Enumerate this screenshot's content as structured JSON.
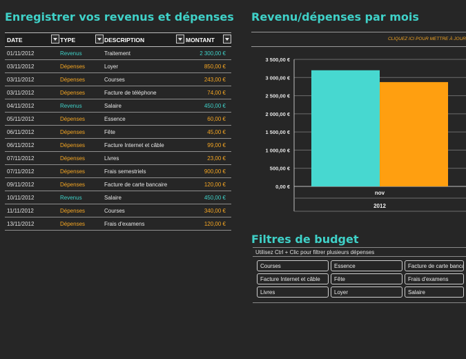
{
  "left_title": "Enregistrer vos revenus et dépenses",
  "chart_title": "Revenu/dépenses par mois",
  "filters_title": "Filtres de budget",
  "table": {
    "headers": [
      "DATE",
      "TYPE",
      "DESCRIPTION",
      "MONTANT"
    ],
    "rows": [
      {
        "date": "01/11/2012",
        "type": "Revenus",
        "desc": "Traitement",
        "amount": "2 300,00 €"
      },
      {
        "date": "03/11/2012",
        "type": "Dépenses",
        "desc": "Loyer",
        "amount": "850,00 €"
      },
      {
        "date": "03/11/2012",
        "type": "Dépenses",
        "desc": "Courses",
        "amount": "243,00 €"
      },
      {
        "date": "03/11/2012",
        "type": "Dépenses",
        "desc": "Facture de téléphone",
        "amount": "74,00 €"
      },
      {
        "date": "04/11/2012",
        "type": "Revenus",
        "desc": "Salaire",
        "amount": "450,00 €"
      },
      {
        "date": "05/11/2012",
        "type": "Dépenses",
        "desc": "Essence",
        "amount": "60,00 €"
      },
      {
        "date": "06/11/2012",
        "type": "Dépenses",
        "desc": "Fête",
        "amount": "45,00 €"
      },
      {
        "date": "06/11/2012",
        "type": "Dépenses",
        "desc": "Facture Internet et câble",
        "amount": "99,00 €"
      },
      {
        "date": "07/11/2012",
        "type": "Dépenses",
        "desc": "Livres",
        "amount": "23,00 €"
      },
      {
        "date": "07/11/2012",
        "type": "Dépenses",
        "desc": "Frais semestriels",
        "amount": "900,00 €"
      },
      {
        "date": "09/11/2012",
        "type": "Dépenses",
        "desc": "Facture de carte bancaire",
        "amount": "120,00 €"
      },
      {
        "date": "10/11/2012",
        "type": "Revenus",
        "desc": "Salaire",
        "amount": "450,00 €"
      },
      {
        "date": "11/11/2012",
        "type": "Dépenses",
        "desc": "Courses",
        "amount": "340,00 €"
      },
      {
        "date": "13/11/2012",
        "type": "Dépenses",
        "desc": "Frais d'examens",
        "amount": "120,00 €"
      }
    ]
  },
  "refresh_text": "CLIQUEZ ICI POUR METTRE À JOUR",
  "chart_data": {
    "type": "bar",
    "categories": [
      "nov"
    ],
    "group_label": "2012",
    "series": [
      {
        "values": [
          3200
        ],
        "color": "#47d8d0"
      },
      {
        "values": [
          2874
        ],
        "color": "#ff9f10"
      }
    ],
    "ylim": [
      0,
      3500
    ],
    "ticks": [
      "0,00 €",
      "500,00 €",
      "1 000,00 €",
      "1 500,00 €",
      "2 000,00 €",
      "2 500,00 €",
      "3 000,00 €",
      "3 500,00 €"
    ],
    "tick_values": [
      0,
      500,
      1000,
      1500,
      2000,
      2500,
      3000,
      3500
    ],
    "grid": true
  },
  "filters_note": "Utilisez Ctrl + Clic pour filtrer plusieurs dépenses",
  "filters": [
    [
      "Courses",
      "Essence",
      "Facture de carte bancaire"
    ],
    [
      "Facture Internet et câble",
      "Fête",
      "Frais d'examens"
    ],
    [
      "Livres",
      "Loyer",
      "Salaire"
    ]
  ],
  "colors": {
    "accent": "#3fd1c8",
    "expense": "#f5a623",
    "background": "#262626"
  }
}
